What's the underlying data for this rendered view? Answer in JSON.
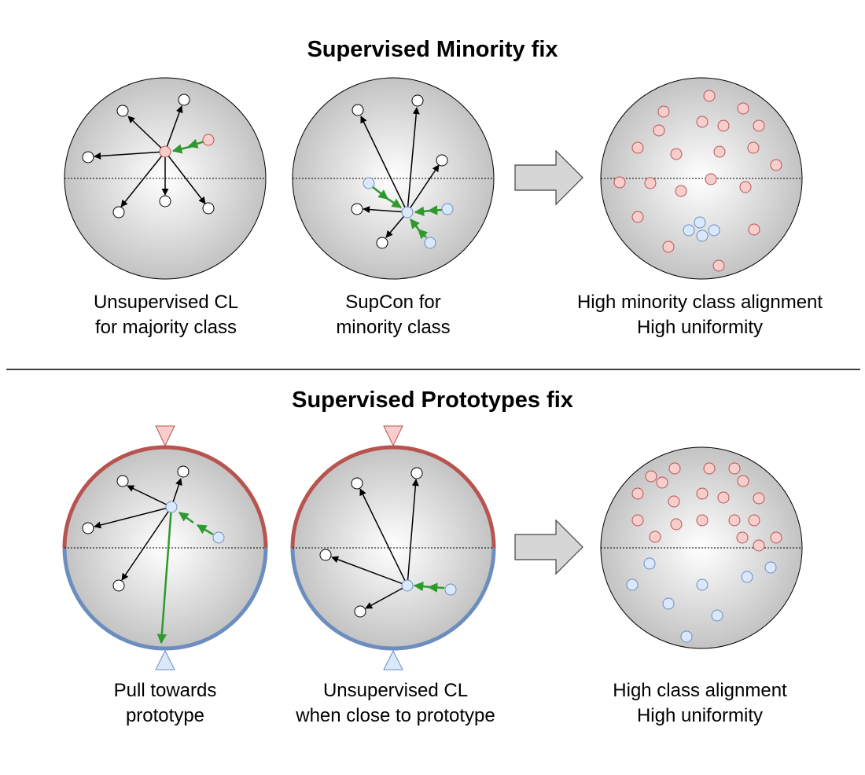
{
  "top": {
    "title": "Supervised Minority fix",
    "panel1": {
      "caption_line1": "Unsupervised CL",
      "caption_line2": "for majority class"
    },
    "panel2": {
      "caption_line1": "SupCon for",
      "caption_line2": "minority class"
    },
    "panel3": {
      "caption_line1": "High minority class alignment",
      "caption_line2": "High uniformity"
    }
  },
  "bottom": {
    "title": "Supervised Prototypes fix",
    "panel1": {
      "caption_line1": "Pull towards",
      "caption_line2": "prototype"
    },
    "panel2": {
      "caption_line1": "Unsupervised CL",
      "caption_line2": "when close to prototype"
    },
    "panel3": {
      "caption_line1": "High class alignment",
      "caption_line2": "High uniformity"
    }
  },
  "colors": {
    "majority": "#f8cecc",
    "majority_stroke": "#b85450",
    "minority": "#dae8fc",
    "minority_stroke": "#6c8ebf",
    "neutral": "#ffffff",
    "pull_arrow": "#2e9a2e",
    "push_arrow": "#000000",
    "red_arc": "#b85450",
    "blue_arc": "#6c8ebf"
  }
}
